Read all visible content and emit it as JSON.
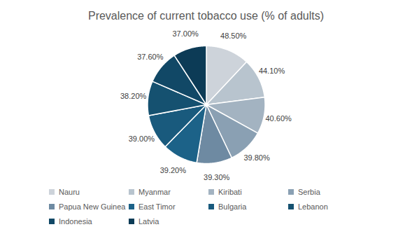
{
  "chart_data": {
    "type": "pie",
    "title": "Prevalence of current tobacco use (% of adults)",
    "categories": [
      "Nauru",
      "Myanmar",
      "Kiribati",
      "Serbia",
      "Papua New Guinea",
      "East Timor",
      "Bulgaria",
      "Lebanon",
      "Indonesia",
      "Latvia"
    ],
    "values": [
      48.5,
      44.1,
      40.6,
      39.8,
      39.3,
      39.2,
      39.0,
      38.2,
      37.6,
      37.0
    ],
    "value_labels": [
      "48.50%",
      "44.10%",
      "40.60%",
      "39.80%",
      "39.30%",
      "39.20%",
      "39.00%",
      "38.20%",
      "37.60%",
      "37.00%"
    ],
    "colors": [
      "#cdd3da",
      "#b8c4ce",
      "#a3b3c1",
      "#8aa0b3",
      "#6e8aa2",
      "#1c6288",
      "#195a7d",
      "#155170",
      "#114866",
      "#0c3b56"
    ],
    "data_labels": true,
    "legend": "bottom"
  }
}
